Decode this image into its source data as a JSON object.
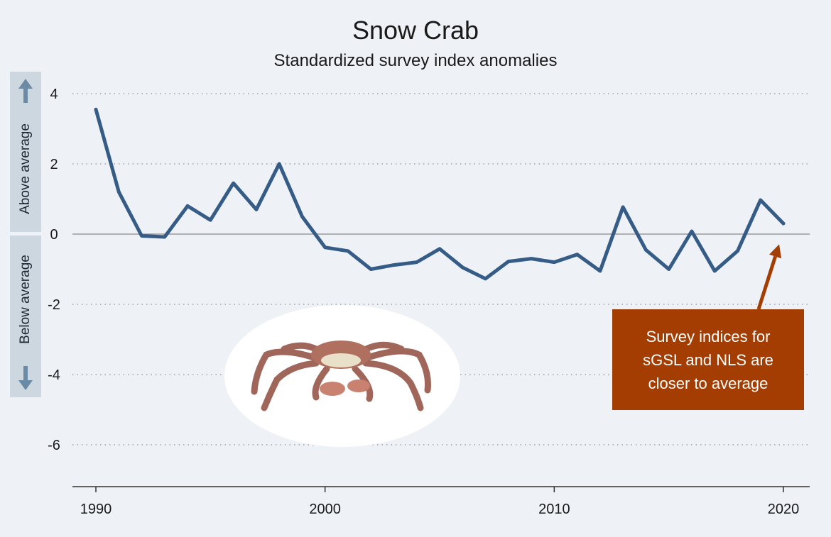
{
  "chart_data": {
    "type": "line",
    "title": "Snow Crab",
    "subtitle": "Standardized survey index anomalies",
    "xlabel": "",
    "ylabel": "",
    "above_label": "Above average",
    "below_label": "Below average",
    "xlim": [
      1990,
      2021
    ],
    "ylim": [
      -7.2,
      4.2
    ],
    "x_ticks": [
      1990,
      2000,
      2010,
      2020
    ],
    "y_ticks": [
      4,
      2,
      0,
      -2,
      -4,
      -6
    ],
    "y_tick_labels": [
      "4",
      "2",
      "0",
      "-2",
      "-4",
      "-6"
    ],
    "grid": "horizontal dotted",
    "series": [
      {
        "x": [
          1990,
          1991,
          1992,
          1993,
          1994,
          1995,
          1996,
          1997,
          1998,
          1999,
          2000,
          2001,
          2002,
          2003,
          2004,
          2005,
          2006,
          2007,
          2008,
          2009,
          2010,
          2011,
          2012,
          2013,
          2014,
          2015,
          2016,
          2017,
          2018,
          2019,
          2020
        ],
        "values": [
          3.55,
          1.2,
          -0.05,
          -0.08,
          0.8,
          0.4,
          1.45,
          0.7,
          2.0,
          0.5,
          -0.38,
          -0.48,
          -1.0,
          -0.88,
          -0.8,
          -0.42,
          -0.95,
          -1.27,
          -0.78,
          -0.7,
          -0.8,
          -0.58,
          -1.05,
          0.77,
          -0.45,
          -1.0,
          0.08,
          -1.05,
          -0.48,
          0.97,
          0.3
        ],
        "color": "#355c87"
      }
    ],
    "annotation": {
      "text_lines": [
        "Survey indices for",
        "sGSL and NLS are",
        "closer to average"
      ],
      "color": "#a33d02",
      "target_x": 2020,
      "target_y": -0.25
    },
    "illustration": "snow-crab"
  }
}
